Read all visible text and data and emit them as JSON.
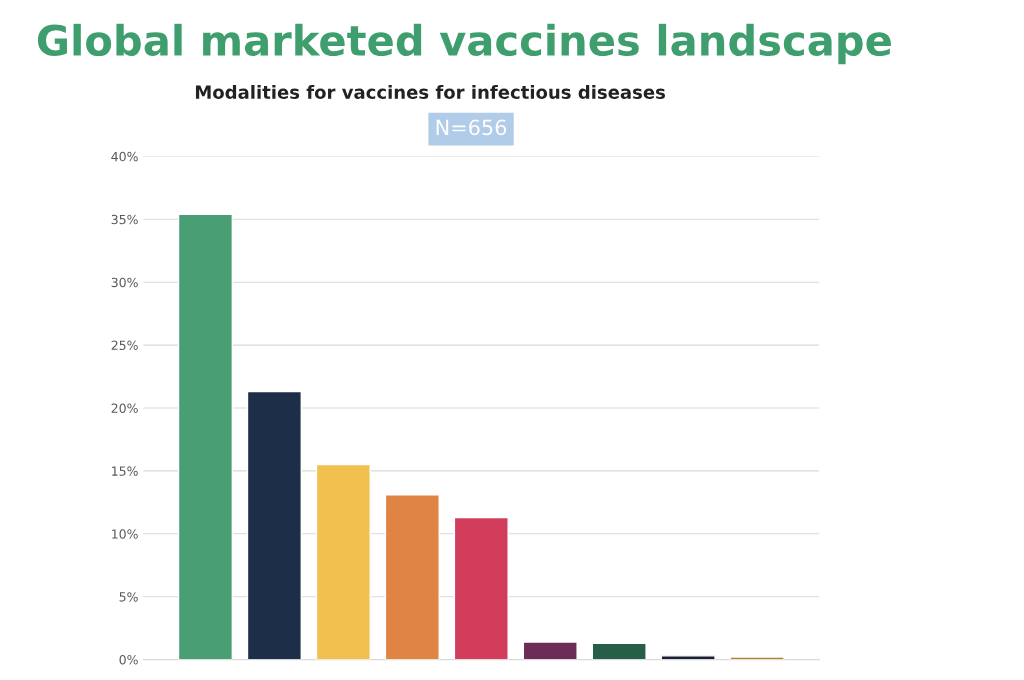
{
  "chart_data": {
    "type": "bar",
    "title": "Global marketed vaccines landscape",
    "subtitle": "Modalities for vaccines for infectious diseases",
    "annotations": [
      "N=656"
    ],
    "categories": [
      null,
      null,
      null,
      null,
      null,
      null,
      null,
      null,
      null
    ],
    "values": [
      35.4,
      21.3,
      15.5,
      13.1,
      11.3,
      1.4,
      1.3,
      0.3,
      0.2
    ],
    "colors": [
      "#4a9e74",
      "#1c2e48",
      "#f2c04e",
      "#e08443",
      "#d33d5c",
      "#6b2d57",
      "#265e48",
      "#1a1f30",
      "#a8822e"
    ],
    "ylim": [
      0,
      40
    ],
    "yticks": [
      {
        "value": 0,
        "label": "0%"
      },
      {
        "value": 5,
        "label": "5%"
      },
      {
        "value": 10,
        "label": "10%"
      },
      {
        "value": 15,
        "label": "15%"
      },
      {
        "value": 20,
        "label": "20%"
      },
      {
        "value": 25,
        "label": "25%"
      },
      {
        "value": 30,
        "label": "30%"
      },
      {
        "value": 35,
        "label": "35%"
      },
      {
        "value": 40,
        "label": "40%"
      }
    ],
    "grid": "y"
  }
}
